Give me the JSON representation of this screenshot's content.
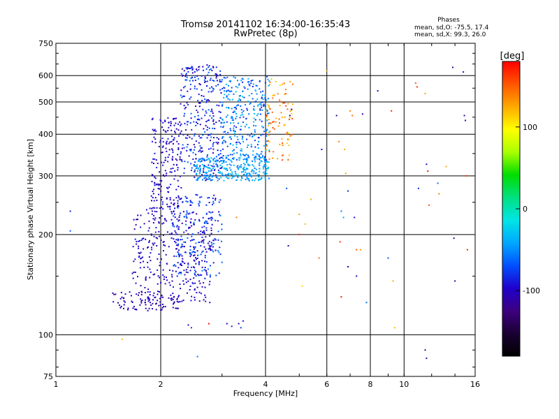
{
  "chart_data": {
    "type": "scatter",
    "title": "Tromsø 20141102 16:34:00-16:35:43",
    "subtitle": "RwPretec (8p)",
    "stats": {
      "heading": "Phases",
      "line_o": "mean, sd,O: -75.5, 17.4",
      "line_x": "mean, sd,X:  99.3, 26.0"
    },
    "xlabel": "Frequency [MHz]",
    "ylabel": "Stationary phase Virtual Height [km]",
    "x_scale": "log",
    "y_scale": "log",
    "xlim": [
      1,
      16
    ],
    "ylim": [
      75,
      750
    ],
    "xticks": [
      1,
      2,
      4,
      6,
      8,
      10,
      16
    ],
    "yticks": [
      75,
      100,
      200,
      300,
      400,
      500,
      600,
      750
    ],
    "grid": true,
    "colorbar": {
      "label": "[deg]",
      "range": [
        -180,
        180
      ],
      "ticks": [
        100,
        0,
        -100
      ],
      "colormap": [
        "#000000",
        "#1a0033",
        "#3d0080",
        "#2000cc",
        "#0050ff",
        "#00a8ff",
        "#00e5e5",
        "#00e080",
        "#00dd00",
        "#aaff00",
        "#ffff00",
        "#ffaa00",
        "#ff5500",
        "#ff0000"
      ]
    },
    "clusters": [
      {
        "x_range": [
          1.45,
          2.3
        ],
        "y_range": [
          118,
          135
        ],
        "phase": [
          -115,
          -95
        ],
        "count": 90
      },
      {
        "x_range": [
          1.65,
          2.8
        ],
        "y_range": [
          125,
          240
        ],
        "phase": [
          -115,
          -85
        ],
        "count": 330
      },
      {
        "x_range": [
          2.15,
          3.0
        ],
        "y_range": [
          150,
          265
        ],
        "phase": [
          -100,
          -55
        ],
        "count": 200
      },
      {
        "x_range": [
          1.88,
          2.3
        ],
        "y_range": [
          240,
          450
        ],
        "phase": [
          -115,
          -85
        ],
        "count": 190
      },
      {
        "x_range": [
          2.28,
          3.0
        ],
        "y_range": [
          290,
          650
        ],
        "phase": [
          -110,
          -60
        ],
        "count": 330
      },
      {
        "x_range": [
          2.5,
          4.1
        ],
        "y_range": [
          290,
          340
        ],
        "phase": [
          -60,
          -25
        ],
        "count": 260
      },
      {
        "x_range": [
          3.0,
          4.1
        ],
        "y_range": [
          330,
          600
        ],
        "phase": [
          -90,
          -25
        ],
        "count": 330
      },
      {
        "x_range": [
          4.0,
          4.8
        ],
        "y_range": [
          330,
          600
        ],
        "phase": [
          110,
          160
        ],
        "count": 90
      }
    ],
    "points": [
      {
        "x": 1.1,
        "y": 235,
        "p": -85
      },
      {
        "x": 1.1,
        "y": 205,
        "p": -65
      },
      {
        "x": 1.55,
        "y": 97,
        "p": 120
      },
      {
        "x": 2.4,
        "y": 107,
        "p": -95
      },
      {
        "x": 2.45,
        "y": 105,
        "p": -80
      },
      {
        "x": 2.55,
        "y": 86,
        "p": -55
      },
      {
        "x": 2.75,
        "y": 108,
        "p": 175
      },
      {
        "x": 3.1,
        "y": 108,
        "p": -100
      },
      {
        "x": 3.2,
        "y": 106,
        "p": -85
      },
      {
        "x": 3.35,
        "y": 108,
        "p": -105
      },
      {
        "x": 3.4,
        "y": 105,
        "p": -75
      },
      {
        "x": 3.45,
        "y": 110,
        "p": -90
      },
      {
        "x": 3.3,
        "y": 225,
        "p": 140
      },
      {
        "x": 4.6,
        "y": 275,
        "p": -70
      },
      {
        "x": 4.65,
        "y": 185,
        "p": -110
      },
      {
        "x": 4.7,
        "y": 455,
        "p": -105
      },
      {
        "x": 4.75,
        "y": 475,
        "p": -120
      },
      {
        "x": 5.0,
        "y": 230,
        "p": 130
      },
      {
        "x": 5.0,
        "y": 200,
        "p": 170
      },
      {
        "x": 5.1,
        "y": 140,
        "p": 115
      },
      {
        "x": 5.2,
        "y": 215,
        "p": 120
      },
      {
        "x": 5.4,
        "y": 255,
        "p": 125
      },
      {
        "x": 5.7,
        "y": 170,
        "p": 145
      },
      {
        "x": 5.8,
        "y": 360,
        "p": -100
      },
      {
        "x": 6.0,
        "y": 620,
        "p": 130
      },
      {
        "x": 6.4,
        "y": 455,
        "p": -115
      },
      {
        "x": 6.5,
        "y": 380,
        "p": 140
      },
      {
        "x": 6.55,
        "y": 190,
        "p": 165
      },
      {
        "x": 6.6,
        "y": 130,
        "p": 175
      },
      {
        "x": 6.6,
        "y": 235,
        "p": -55
      },
      {
        "x": 6.7,
        "y": 225,
        "p": -40
      },
      {
        "x": 6.75,
        "y": 360,
        "p": 125
      },
      {
        "x": 6.8,
        "y": 305,
        "p": 130
      },
      {
        "x": 6.9,
        "y": 270,
        "p": -80
      },
      {
        "x": 6.9,
        "y": 160,
        "p": -110
      },
      {
        "x": 7.0,
        "y": 470,
        "p": 140
      },
      {
        "x": 7.1,
        "y": 455,
        "p": 145
      },
      {
        "x": 7.2,
        "y": 225,
        "p": -95
      },
      {
        "x": 7.3,
        "y": 150,
        "p": -105
      },
      {
        "x": 7.3,
        "y": 180,
        "p": 150
      },
      {
        "x": 7.5,
        "y": 180,
        "p": 130
      },
      {
        "x": 7.6,
        "y": 460,
        "p": -110
      },
      {
        "x": 7.8,
        "y": 125,
        "p": -60
      },
      {
        "x": 8.4,
        "y": 540,
        "p": -110
      },
      {
        "x": 9.0,
        "y": 170,
        "p": -70
      },
      {
        "x": 9.2,
        "y": 470,
        "p": 170
      },
      {
        "x": 9.3,
        "y": 145,
        "p": 125
      },
      {
        "x": 9.4,
        "y": 105,
        "p": 120
      },
      {
        "x": 10.8,
        "y": 570,
        "p": 150
      },
      {
        "x": 10.9,
        "y": 555,
        "p": 165
      },
      {
        "x": 11.0,
        "y": 275,
        "p": -85
      },
      {
        "x": 11.5,
        "y": 530,
        "p": 130
      },
      {
        "x": 11.6,
        "y": 325,
        "p": -105
      },
      {
        "x": 11.7,
        "y": 310,
        "p": 175
      },
      {
        "x": 11.8,
        "y": 245,
        "p": 155
      },
      {
        "x": 11.5,
        "y": 90,
        "p": -115
      },
      {
        "x": 11.6,
        "y": 85,
        "p": -110
      },
      {
        "x": 12.5,
        "y": 285,
        "p": -60
      },
      {
        "x": 12.6,
        "y": 265,
        "p": 140
      },
      {
        "x": 13.2,
        "y": 320,
        "p": 125
      },
      {
        "x": 13.8,
        "y": 635,
        "p": -115
      },
      {
        "x": 13.9,
        "y": 195,
        "p": -105
      },
      {
        "x": 14.0,
        "y": 145,
        "p": -110
      },
      {
        "x": 14.8,
        "y": 615,
        "p": -100
      },
      {
        "x": 14.9,
        "y": 455,
        "p": -105
      },
      {
        "x": 15.0,
        "y": 440,
        "p": -95
      },
      {
        "x": 15.1,
        "y": 300,
        "p": 165
      },
      {
        "x": 15.2,
        "y": 180,
        "p": 170
      }
    ]
  }
}
